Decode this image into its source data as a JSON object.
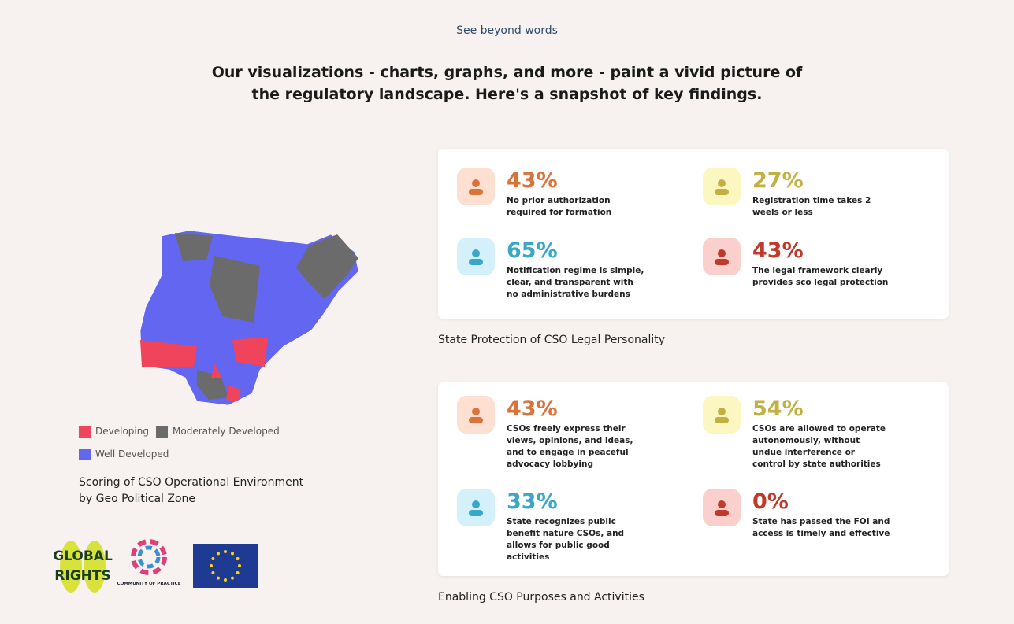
{
  "header": {
    "tagline": "See beyond words",
    "heading": [
      "Our visualizations - charts, graphs, and more - paint a vivid picture of",
      "the regulatory landscape. Here's a snapshot of key findings."
    ]
  },
  "map": {
    "legend": [
      "Developing",
      "Moderately Developed",
      "Well Developed"
    ],
    "caption": [
      "Scoring of CSO Operational Environment",
      "by Geo Political Zone"
    ]
  },
  "logos": {
    "global_rights": [
      "GLOBAL",
      "RIGHTS"
    ],
    "community": "COMMUNITY OF PRACTICE"
  },
  "cards": [
    {
      "caption": "State Protection of CSO Legal Personality",
      "stats": [
        {
          "value": "43%",
          "text": "No prior authorization required for formation"
        },
        {
          "value": "27%",
          "text": "Registration time takes 2 weels or less"
        },
        {
          "value": "65%",
          "text": "Notification regime is simple, clear, and transparent with no administrative burdens"
        },
        {
          "value": "43%",
          "text": "The legal framework clearly provides sco legal protection"
        }
      ]
    },
    {
      "caption": "Enabling CSO Purposes and Activities",
      "stats": [
        {
          "value": "43%",
          "text": "CSOs freely express their views, opinions, and ideas, and to engage in peaceful advocacy lobbying"
        },
        {
          "value": "54%",
          "text": "CSOs are allowed to operate autonomously, without undue interference or control by state authorities"
        },
        {
          "value": "33%",
          "text": "State recognizes public benefit nature CSOs, and allows for public good activities"
        },
        {
          "value": "0%",
          "text": "State has passed the FOI and access is timely and effective"
        }
      ]
    }
  ]
}
